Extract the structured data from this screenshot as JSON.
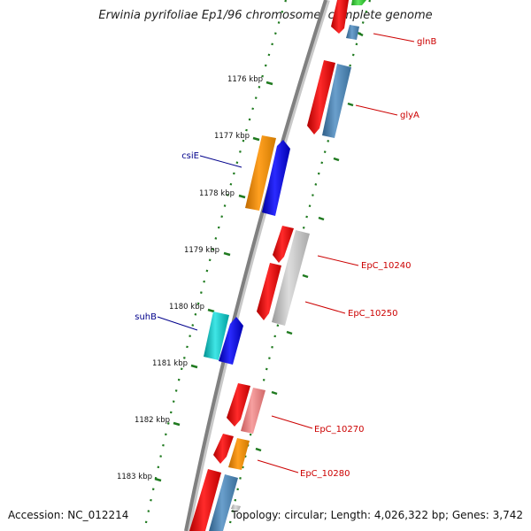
{
  "title": "Erwinia pyrifoliae Ep1/96 chromosome, complete genome",
  "footer": {
    "accession": "Accession: NC_012214",
    "topology": "Topology: circular; Length: 4,026,322 bp; Genes: 3,742"
  },
  "colors": {
    "backbone": "#808080",
    "ruler": "#1f7a1f",
    "label_forward": "#cc0000",
    "label_reverse": "#00008b",
    "gene_red": "#ff0000",
    "gene_blue": "#0000ff",
    "gene_orange": "#ff9900",
    "gene_steelblue": "#4682b4",
    "gene_cyan": "#00cccc",
    "gene_gray": "#bbbbbb",
    "gene_salmon": "#f08080",
    "gene_green": "#33cc33"
  },
  "ruler_ticks": [
    "1176 kbp",
    "1177 kbp",
    "1178 kbp",
    "1179 kbp",
    "1180 kbp",
    "1181 kbp",
    "1182 kbp",
    "1183 kbp"
  ],
  "gene_labels": [
    {
      "text": "glnB",
      "side": "forward"
    },
    {
      "text": "glyA",
      "side": "forward"
    },
    {
      "text": "csiE",
      "side": "reverse"
    },
    {
      "text": "EpC_10240",
      "side": "forward"
    },
    {
      "text": "EpC_10250",
      "side": "forward"
    },
    {
      "text": "suhB",
      "side": "reverse"
    },
    {
      "text": "EpC_10270",
      "side": "forward"
    },
    {
      "text": "EpC_10280",
      "side": "forward"
    }
  ]
}
